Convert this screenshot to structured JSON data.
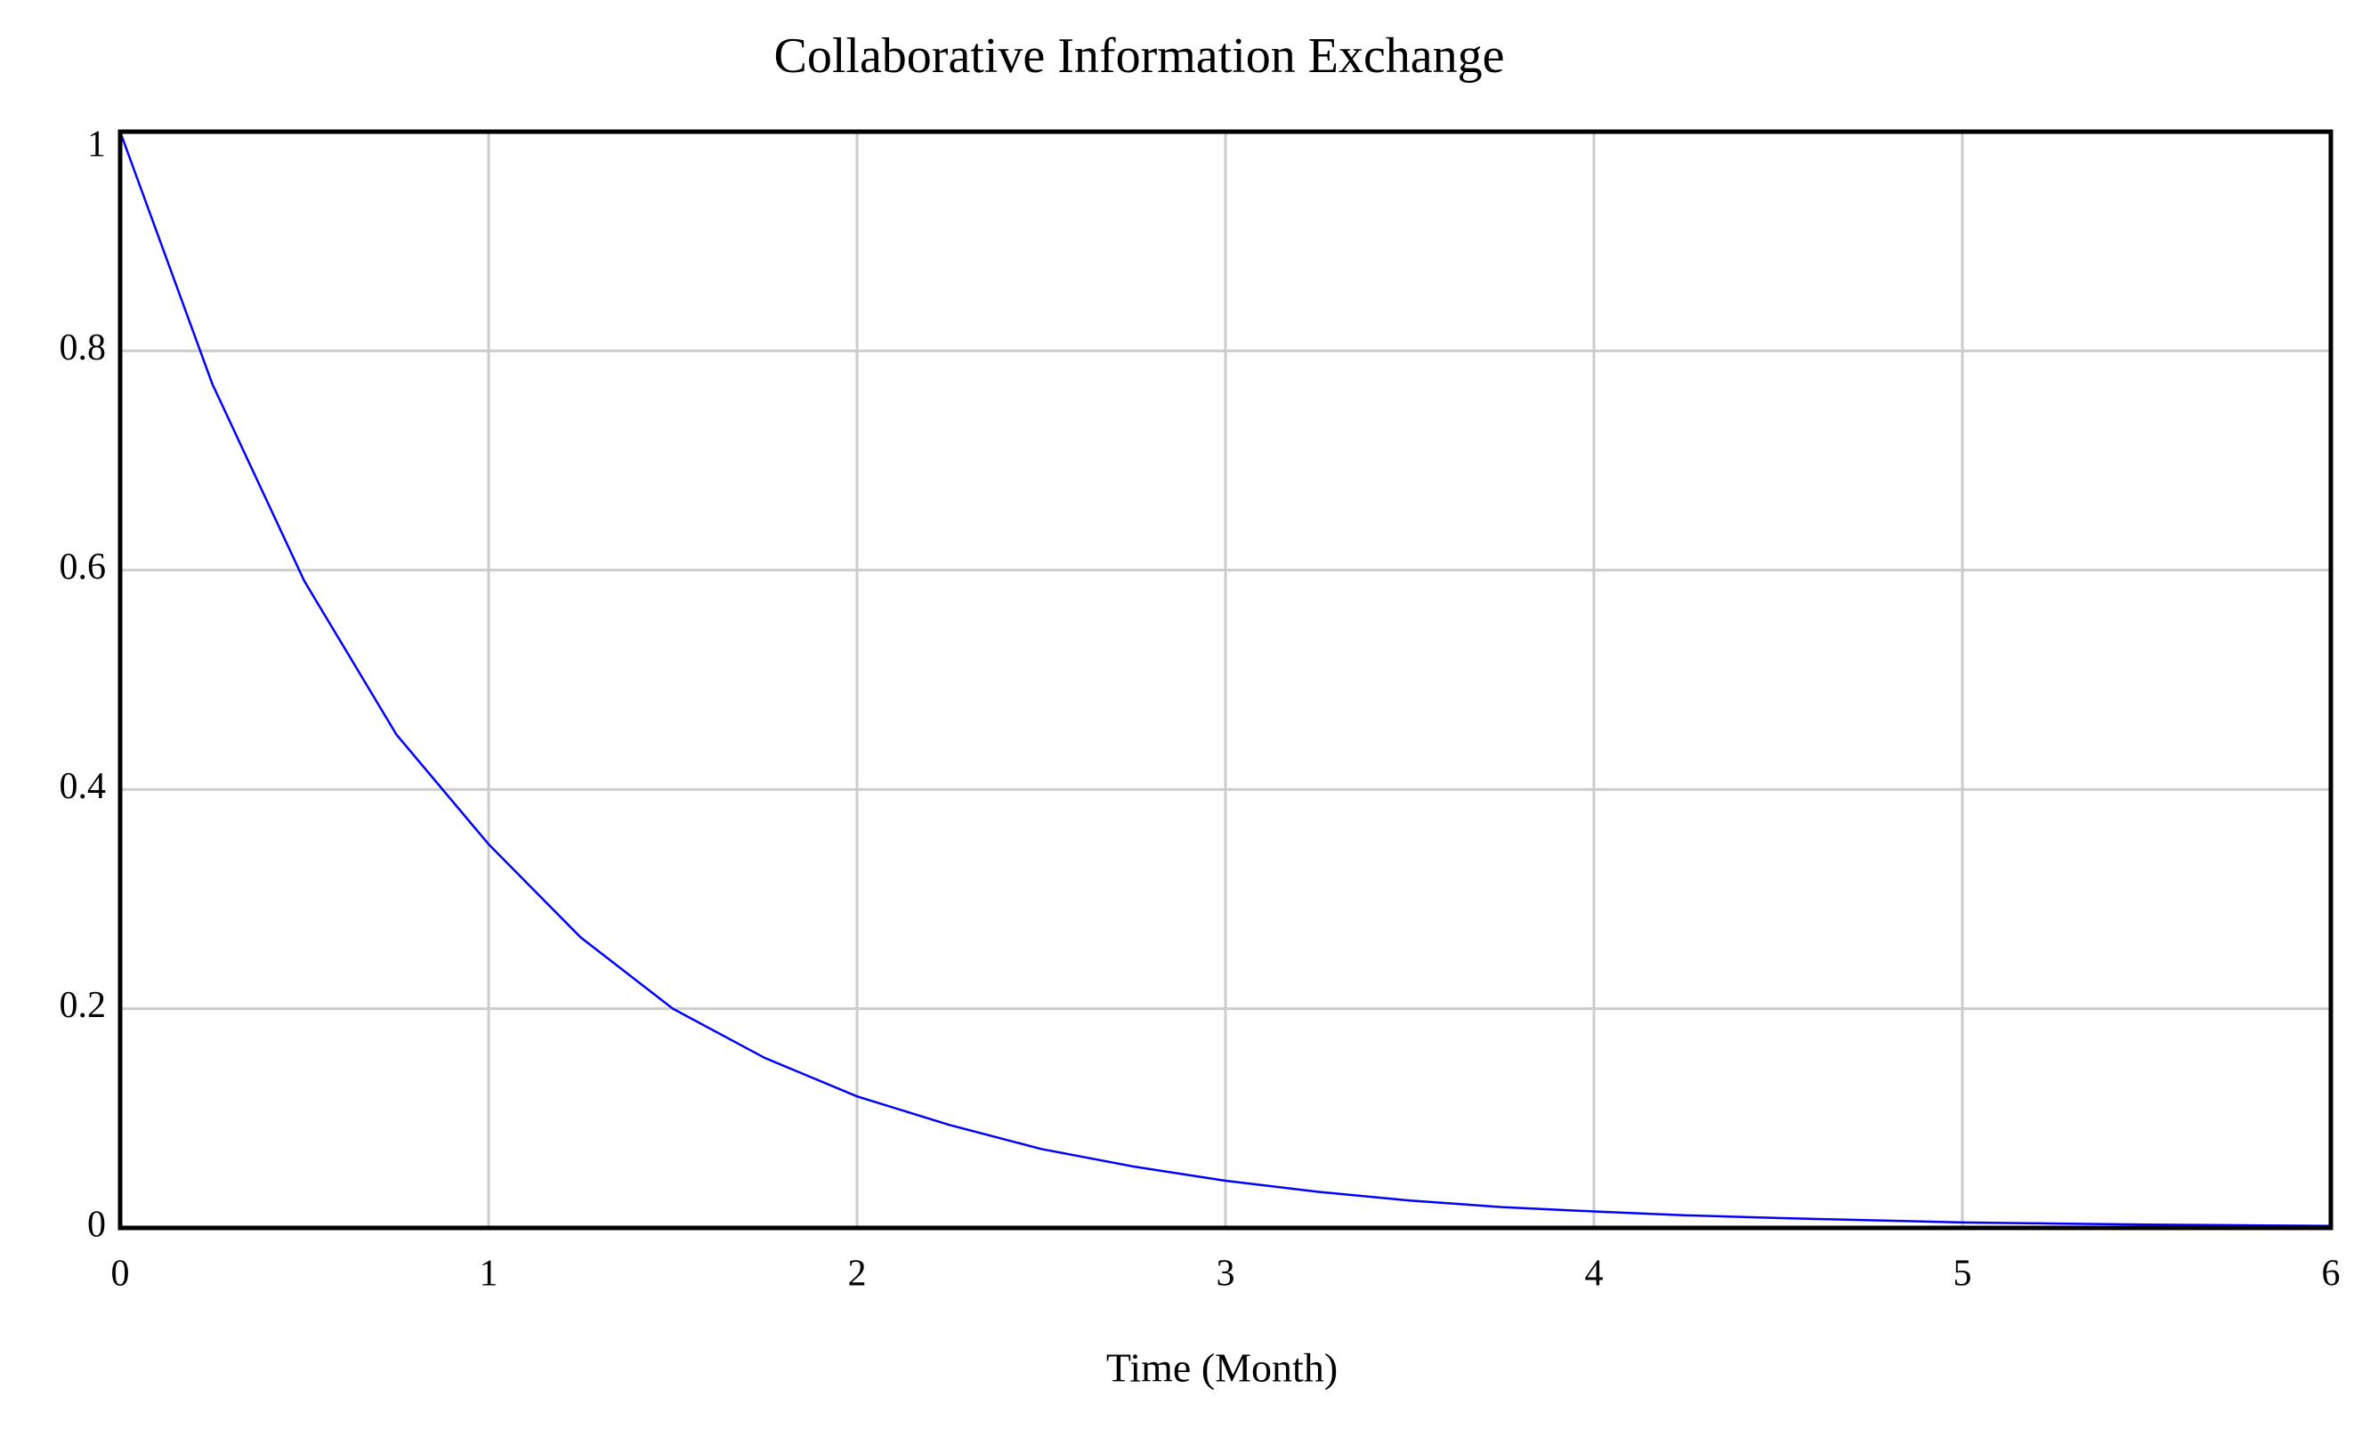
{
  "chart_data": {
    "type": "line",
    "title": "Collaborative Information Exchange",
    "x_label": "Time (Month)",
    "x": [
      0,
      0.25,
      0.5,
      0.75,
      1,
      1.25,
      1.5,
      1.75,
      2,
      2.25,
      2.5,
      2.75,
      3,
      3.25,
      3.5,
      3.75,
      4,
      4.25,
      4.5,
      4.75,
      5,
      5.25,
      5.5,
      5.75,
      6
    ],
    "series": [
      {
        "color": "#0000ff",
        "values": [
          1,
          0.77,
          0.59,
          0.45,
          0.35,
          0.265,
          0.2,
          0.155,
          0.12,
          0.094,
          0.072,
          0.056,
          0.043,
          0.033,
          0.025,
          0.019,
          0.015,
          0.0115,
          0.009,
          0.007,
          0.005,
          0.004,
          0.003,
          0.0024,
          0.0018
        ]
      }
    ],
    "xlim": [
      0,
      6
    ],
    "xticks": [
      0,
      1,
      2,
      3,
      4,
      5,
      6
    ],
    "ylim": [
      0,
      1
    ],
    "yticks": [
      0,
      0.2,
      0.4,
      0.6,
      0.8,
      1
    ],
    "grid": true
  }
}
